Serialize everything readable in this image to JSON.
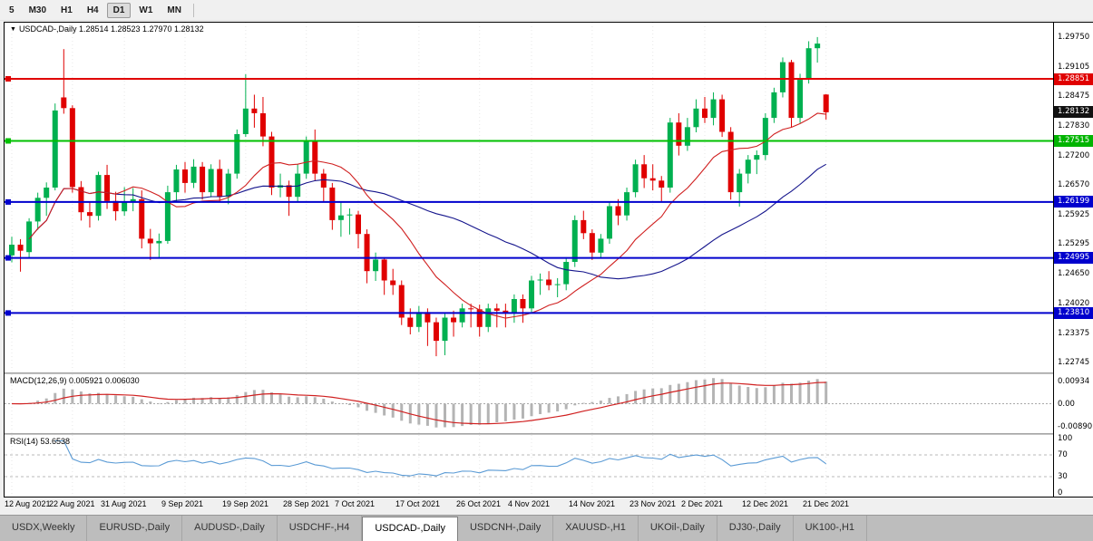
{
  "toolbar": {
    "periods": [
      {
        "label": "5"
      },
      {
        "label": "M30"
      },
      {
        "label": "H1"
      },
      {
        "label": "H4"
      },
      {
        "label": "D1"
      },
      {
        "label": "W1"
      },
      {
        "label": "MN"
      }
    ]
  },
  "chart": {
    "header": "USDCAD-,Daily 1.28514 1.28523 1.27970 1.28132",
    "macd_label": "MACD(12,26,9) 0.005921 0.006030",
    "rsi_label": "RSI(14) 53.6538"
  },
  "tabs": [
    {
      "label": "USDX,Weekly"
    },
    {
      "label": "EURUSD-,Daily"
    },
    {
      "label": "AUDUSD-,Daily"
    },
    {
      "label": "USDCHF-,H4"
    },
    {
      "label": "USDCAD-,Daily",
      "active": true
    },
    {
      "label": "USDCNH-,Daily"
    },
    {
      "label": "XAUUSD-,H1"
    },
    {
      "label": "UKOil-,Daily"
    },
    {
      "label": "DJ30-,Daily"
    },
    {
      "label": "UK100-,H1"
    }
  ],
  "chart_data": {
    "type": "candlestick",
    "symbol": "USDCAD-",
    "timeframe": "Daily",
    "current": {
      "open": 1.28514,
      "high": 1.28523,
      "low": 1.2797,
      "close": 1.28132
    },
    "price_range": {
      "top": 1.3006,
      "bottom": 1.2253
    },
    "y_axis_labels": [
      "1.29750",
      "1.29105",
      "1.28475",
      "1.27830",
      "1.27200",
      "1.26570",
      "1.25925",
      "1.25295",
      "1.24650",
      "1.24020",
      "1.23375",
      "1.22745"
    ],
    "price_tags": [
      {
        "text": "1.28851",
        "value": 1.28851,
        "color": "#e00000"
      },
      {
        "text": "1.28132",
        "value": 1.28132,
        "color": "#111111"
      },
      {
        "text": "1.27515",
        "value": 1.27515,
        "color": "#00b400"
      },
      {
        "text": "1.26199",
        "value": 1.26199,
        "color": "#0000cd"
      },
      {
        "text": "1.24995",
        "value": 1.24995,
        "color": "#0000cd"
      },
      {
        "text": "1.23810",
        "value": 1.2381,
        "color": "#0000cd"
      }
    ],
    "hlines": [
      {
        "value": 1.28851,
        "color": "#e00000"
      },
      {
        "value": 1.27515,
        "color": "#00c000"
      },
      {
        "value": 1.26199,
        "color": "#0000cd"
      },
      {
        "value": 1.24995,
        "color": "#0000cd"
      },
      {
        "value": 1.2381,
        "color": "#0000cd"
      }
    ],
    "x_axis_labels": [
      "12 Aug 2021",
      "22 Aug 2021",
      "31 Aug 2021",
      "9 Sep 2021",
      "19 Sep 2021",
      "28 Sep 2021",
      "7 Oct 2021",
      "17 Oct 2021",
      "26 Oct 2021",
      "4 Nov 2021",
      "14 Nov 2021",
      "23 Nov 2021",
      "2 Dec 2021",
      "12 Dec 2021",
      "21 Dec 2021"
    ],
    "colors": {
      "up": "#00b050",
      "down": "#e00000",
      "ma_fast": "#d02020",
      "ma_slow": "#15158c",
      "macd_hist": "#b4b4b4",
      "macd_signal": "#d02020",
      "rsi": "#5b9bd5",
      "rsi_level": "#b8b8b8",
      "grid": "#e7e7e7"
    },
    "ma_periods": {
      "fast": 13,
      "slow": 34
    },
    "macd": {
      "params": "12,26,9",
      "current_macd": "0.005921",
      "current_signal": "0.006030",
      "axis_labels": [
        "0.00934",
        "0.00",
        "-0.00890"
      ]
    },
    "rsi": {
      "period": 14,
      "current": "53.6538",
      "axis_labels": [
        "100",
        "70",
        "30",
        "0"
      ],
      "levels": [
        70,
        30
      ]
    },
    "candles": [
      [
        1.2505,
        1.2545,
        1.249,
        1.2528
      ],
      [
        1.2528,
        1.254,
        1.247,
        1.2515
      ],
      [
        1.2512,
        1.2585,
        1.25,
        1.2578
      ],
      [
        1.2578,
        1.264,
        1.256,
        1.2629
      ],
      [
        1.2629,
        1.2662,
        1.259,
        1.2651
      ],
      [
        1.2651,
        1.2832,
        1.2645,
        1.2817
      ],
      [
        1.2845,
        1.2949,
        1.281,
        1.2822
      ],
      [
        1.2822,
        1.2828,
        1.264,
        1.2652
      ],
      [
        1.2652,
        1.2665,
        1.258,
        1.2598
      ],
      [
        1.2598,
        1.262,
        1.2565,
        1.259
      ],
      [
        1.259,
        1.2685,
        1.258,
        1.2678
      ],
      [
        1.2678,
        1.27,
        1.2605,
        1.2622
      ],
      [
        1.2622,
        1.2642,
        1.258,
        1.26
      ],
      [
        1.26,
        1.2652,
        1.259,
        1.2621
      ],
      [
        1.2621,
        1.265,
        1.26,
        1.2626
      ],
      [
        1.2626,
        1.2645,
        1.252,
        1.2541
      ],
      [
        1.2541,
        1.2562,
        1.2495,
        1.2531
      ],
      [
        1.2531,
        1.2552,
        1.25,
        1.2536
      ],
      [
        1.2536,
        1.2655,
        1.253,
        1.2641
      ],
      [
        1.2641,
        1.27,
        1.262,
        1.269
      ],
      [
        1.269,
        1.2706,
        1.264,
        1.2661
      ],
      [
        1.2661,
        1.2712,
        1.265,
        1.2696
      ],
      [
        1.2696,
        1.2706,
        1.2625,
        1.2641
      ],
      [
        1.2641,
        1.2701,
        1.263,
        1.2691
      ],
      [
        1.2691,
        1.2711,
        1.262,
        1.2631
      ],
      [
        1.2631,
        1.2691,
        1.2615,
        1.2681
      ],
      [
        1.2681,
        1.2776,
        1.267,
        1.2766
      ],
      [
        1.2766,
        1.2895,
        1.276,
        1.2821
      ],
      [
        1.2821,
        1.2851,
        1.278,
        1.2811
      ],
      [
        1.2811,
        1.2846,
        1.274,
        1.2761
      ],
      [
        1.2761,
        1.2771,
        1.2635,
        1.2651
      ],
      [
        1.2651,
        1.2681,
        1.263,
        1.2656
      ],
      [
        1.2656,
        1.2666,
        1.259,
        1.2631
      ],
      [
        1.2631,
        1.2701,
        1.262,
        1.2681
      ],
      [
        1.2681,
        1.2761,
        1.267,
        1.2751
      ],
      [
        1.2751,
        1.2776,
        1.2665,
        1.2681
      ],
      [
        1.2681,
        1.2691,
        1.262,
        1.2651
      ],
      [
        1.2651,
        1.2661,
        1.256,
        1.2581
      ],
      [
        1.2581,
        1.2621,
        1.2545,
        1.2591
      ],
      [
        1.2591,
        1.2606,
        1.255,
        1.2593
      ],
      [
        1.2593,
        1.2601,
        1.252,
        1.2551
      ],
      [
        1.2551,
        1.2561,
        1.2445,
        1.2471
      ],
      [
        1.2471,
        1.2511,
        1.245,
        1.2496
      ],
      [
        1.2496,
        1.2501,
        1.242,
        1.2451
      ],
      [
        1.2451,
        1.2476,
        1.242,
        1.2441
      ],
      [
        1.2441,
        1.2451,
        1.2355,
        1.2371
      ],
      [
        1.2371,
        1.2391,
        1.2335,
        1.2351
      ],
      [
        1.2351,
        1.2396,
        1.234,
        1.2383
      ],
      [
        1.2383,
        1.2391,
        1.231,
        1.2361
      ],
      [
        1.2361,
        1.2371,
        1.2288,
        1.2321
      ],
      [
        1.2321,
        1.2381,
        1.229,
        1.2371
      ],
      [
        1.2371,
        1.2386,
        1.233,
        1.2361
      ],
      [
        1.2361,
        1.2401,
        1.235,
        1.2391
      ],
      [
        1.2391,
        1.2401,
        1.235,
        1.2389
      ],
      [
        1.2389,
        1.2399,
        1.233,
        1.2351
      ],
      [
        1.2351,
        1.2401,
        1.234,
        1.2391
      ],
      [
        1.2391,
        1.2401,
        1.235,
        1.2386
      ],
      [
        1.2386,
        1.2401,
        1.235,
        1.2381
      ],
      [
        1.2381,
        1.2421,
        1.236,
        1.2411
      ],
      [
        1.2411,
        1.2421,
        1.236,
        1.2391
      ],
      [
        1.2391,
        1.2461,
        1.238,
        1.2451
      ],
      [
        1.2451,
        1.2466,
        1.242,
        1.2453
      ],
      [
        1.2453,
        1.2471,
        1.243,
        1.2441
      ],
      [
        1.2441,
        1.2456,
        1.2415,
        1.2443
      ],
      [
        1.2443,
        1.2501,
        1.243,
        1.2491
      ],
      [
        1.2491,
        1.2591,
        1.248,
        1.2581
      ],
      [
        1.2581,
        1.2601,
        1.254,
        1.2553
      ],
      [
        1.2553,
        1.2561,
        1.2495,
        1.2511
      ],
      [
        1.2511,
        1.2551,
        1.25,
        1.2541
      ],
      [
        1.2541,
        1.2621,
        1.253,
        1.2611
      ],
      [
        1.2611,
        1.2626,
        1.257,
        1.2591
      ],
      [
        1.2591,
        1.2651,
        1.258,
        1.2641
      ],
      [
        1.2641,
        1.2711,
        1.263,
        1.2701
      ],
      [
        1.2701,
        1.2721,
        1.265,
        1.2671
      ],
      [
        1.2671,
        1.2701,
        1.2645,
        1.2666
      ],
      [
        1.2666,
        1.2676,
        1.262,
        1.2651
      ],
      [
        1.2651,
        1.2801,
        1.264,
        1.2791
      ],
      [
        1.2791,
        1.2811,
        1.272,
        1.2741
      ],
      [
        1.2741,
        1.2801,
        1.273,
        1.2781
      ],
      [
        1.2781,
        1.2841,
        1.277,
        1.2821
      ],
      [
        1.2821,
        1.2846,
        1.279,
        1.2801
      ],
      [
        1.2801,
        1.2856,
        1.2785,
        1.2841
      ],
      [
        1.2841,
        1.2851,
        1.276,
        1.2771
      ],
      [
        1.2771,
        1.2781,
        1.2625,
        1.2641
      ],
      [
        1.2641,
        1.2691,
        1.261,
        1.2681
      ],
      [
        1.2681,
        1.2721,
        1.266,
        1.2711
      ],
      [
        1.2711,
        1.2731,
        1.268,
        1.2721
      ],
      [
        1.2721,
        1.2811,
        1.271,
        1.2801
      ],
      [
        1.2801,
        1.2866,
        1.279,
        1.2856
      ],
      [
        1.2856,
        1.2931,
        1.2845,
        1.2921
      ],
      [
        1.2921,
        1.2926,
        1.278,
        1.2801
      ],
      [
        1.2801,
        1.2896,
        1.279,
        1.2886
      ],
      [
        1.2886,
        1.2966,
        1.2875,
        1.2951
      ],
      [
        1.2951,
        1.2975,
        1.292,
        1.2961
      ],
      [
        1.28514,
        1.28523,
        1.2797,
        1.28132
      ]
    ]
  }
}
